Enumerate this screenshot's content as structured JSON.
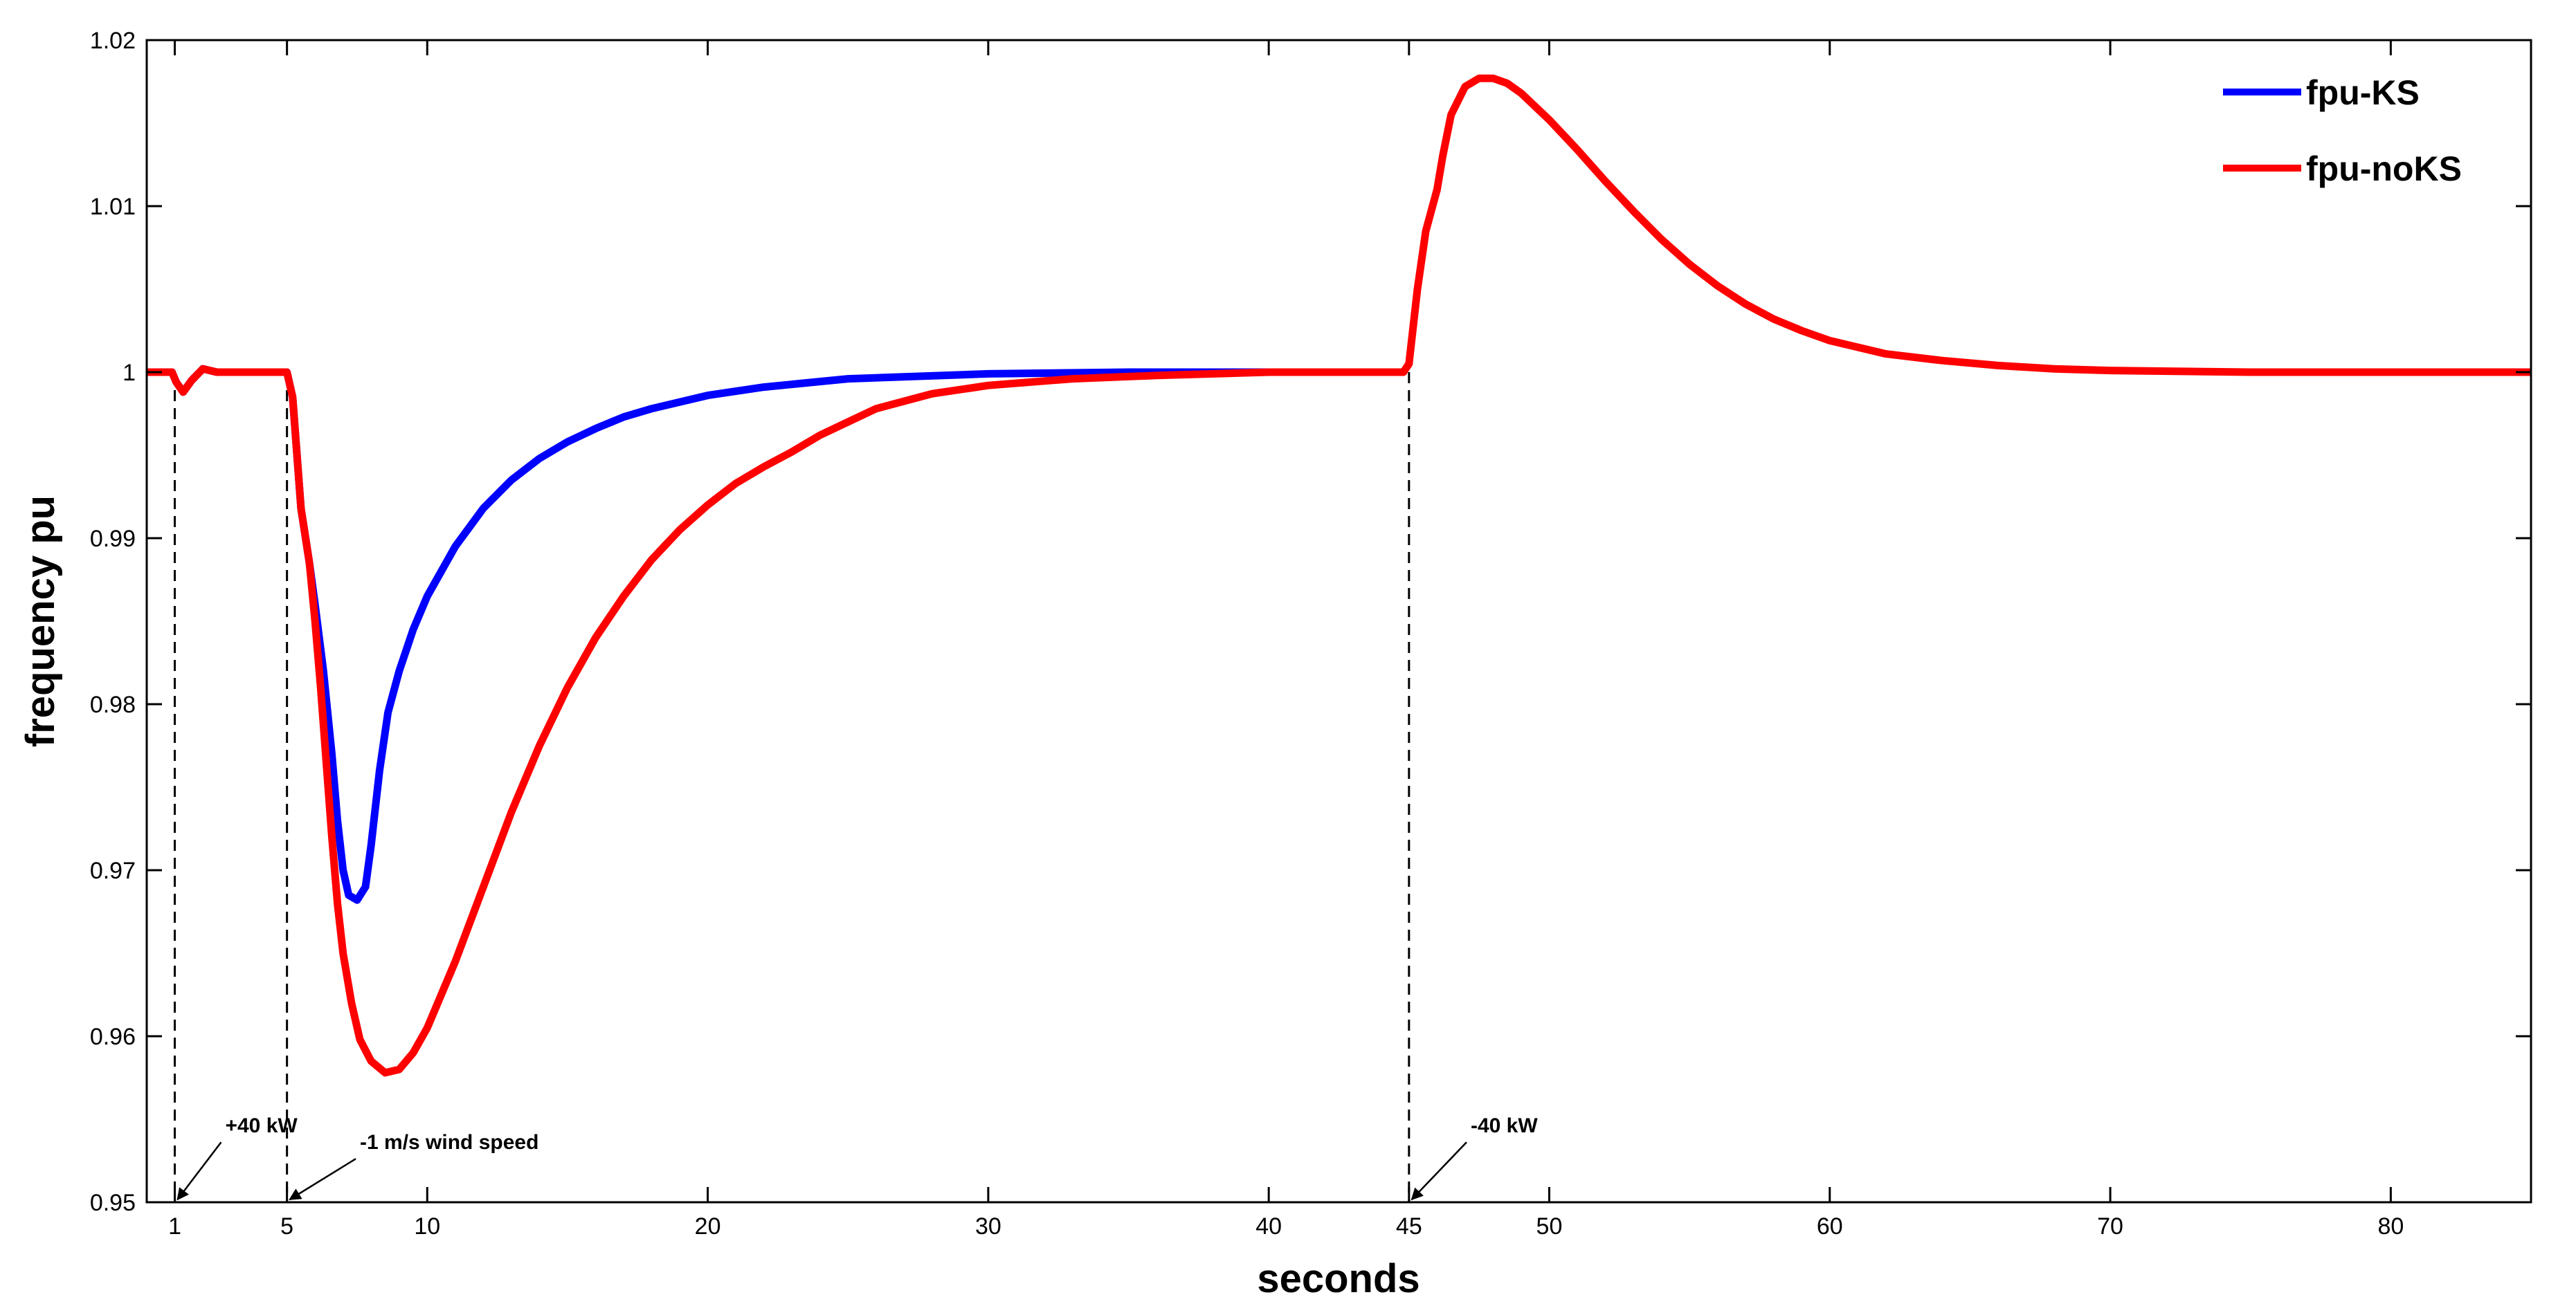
{
  "chart_data": {
    "type": "line",
    "title": "",
    "xlabel": "seconds",
    "ylabel": "frequency pu",
    "xlim": [
      0,
      85
    ],
    "ylim": [
      0.95,
      1.02
    ],
    "xticks": [
      1,
      5,
      10,
      20,
      30,
      40,
      45,
      50,
      60,
      70,
      80
    ],
    "yticks": [
      0.95,
      0.96,
      0.97,
      0.98,
      0.99,
      1,
      1.01,
      1.02
    ],
    "grid": false,
    "legend": "top-right",
    "series": [
      {
        "name": "fpu-KS",
        "color": "#0000ff",
        "points": [
          [
            0,
            1
          ],
          [
            0.9,
            1
          ],
          [
            1.05,
            0.9994
          ],
          [
            1.3,
            0.9988
          ],
          [
            1.6,
            0.9995
          ],
          [
            2,
            1.0002
          ],
          [
            2.5,
            1
          ],
          [
            4,
            1
          ],
          [
            5,
            1
          ],
          [
            5.2,
            0.9985
          ],
          [
            5.5,
            0.9918
          ],
          [
            5.8,
            0.9885
          ],
          [
            6,
            0.986
          ],
          [
            6.3,
            0.982
          ],
          [
            6.6,
            0.977
          ],
          [
            6.8,
            0.973
          ],
          [
            7,
            0.97
          ],
          [
            7.2,
            0.9685
          ],
          [
            7.5,
            0.9682
          ],
          [
            7.8,
            0.969
          ],
          [
            8,
            0.9715
          ],
          [
            8.3,
            0.976
          ],
          [
            8.6,
            0.9795
          ],
          [
            9,
            0.982
          ],
          [
            9.5,
            0.9845
          ],
          [
            10,
            0.9865
          ],
          [
            11,
            0.9895
          ],
          [
            12,
            0.9918
          ],
          [
            13,
            0.9935
          ],
          [
            14,
            0.9948
          ],
          [
            15,
            0.9958
          ],
          [
            16,
            0.9966
          ],
          [
            17,
            0.9973
          ],
          [
            18,
            0.9978
          ],
          [
            20,
            0.9986
          ],
          [
            22,
            0.9991
          ],
          [
            25,
            0.9996
          ],
          [
            30,
            0.9999
          ],
          [
            35,
            1
          ],
          [
            44.7,
            1
          ]
        ]
      },
      {
        "name": "fpu-noKS",
        "color": "#ff0000",
        "points": [
          [
            0,
            1
          ],
          [
            0.9,
            1
          ],
          [
            1.05,
            0.9994
          ],
          [
            1.3,
            0.9988
          ],
          [
            1.6,
            0.9995
          ],
          [
            2,
            1.0002
          ],
          [
            2.5,
            1
          ],
          [
            4,
            1
          ],
          [
            5,
            1
          ],
          [
            5.2,
            0.9985
          ],
          [
            5.5,
            0.9918
          ],
          [
            5.8,
            0.9885
          ],
          [
            6,
            0.985
          ],
          [
            6.2,
            0.981
          ],
          [
            6.4,
            0.9765
          ],
          [
            6.6,
            0.972
          ],
          [
            6.8,
            0.968
          ],
          [
            7,
            0.965
          ],
          [
            7.3,
            0.962
          ],
          [
            7.6,
            0.9598
          ],
          [
            8,
            0.9585
          ],
          [
            8.5,
            0.9578
          ],
          [
            9,
            0.958
          ],
          [
            9.5,
            0.959
          ],
          [
            10,
            0.9605
          ],
          [
            11,
            0.9645
          ],
          [
            12,
            0.969
          ],
          [
            13,
            0.9735
          ],
          [
            14,
            0.9775
          ],
          [
            15,
            0.981
          ],
          [
            16,
            0.984
          ],
          [
            17,
            0.9865
          ],
          [
            18,
            0.9887
          ],
          [
            19,
            0.9905
          ],
          [
            20,
            0.992
          ],
          [
            21,
            0.9933
          ],
          [
            22,
            0.9943
          ],
          [
            23,
            0.9952
          ],
          [
            24,
            0.9962
          ],
          [
            25,
            0.997
          ],
          [
            26,
            0.9978
          ],
          [
            28,
            0.9987
          ],
          [
            30,
            0.9992
          ],
          [
            33,
            0.9996
          ],
          [
            36,
            0.9998
          ],
          [
            40,
            1
          ],
          [
            44.8,
            1
          ],
          [
            45,
            1.0005
          ],
          [
            45.3,
            1.005
          ],
          [
            45.6,
            1.0085
          ],
          [
            46,
            1.011
          ],
          [
            46.2,
            1.013
          ],
          [
            46.5,
            1.0155
          ],
          [
            47,
            1.0172
          ],
          [
            47.5,
            1.0177
          ],
          [
            48,
            1.0177
          ],
          [
            48.5,
            1.0174
          ],
          [
            49,
            1.0168
          ],
          [
            50,
            1.0152
          ],
          [
            51,
            1.0134
          ],
          [
            52,
            1.0115
          ],
          [
            53,
            1.0097
          ],
          [
            54,
            1.008
          ],
          [
            55,
            1.0065
          ],
          [
            56,
            1.0052
          ],
          [
            57,
            1.0041
          ],
          [
            58,
            1.0032
          ],
          [
            59,
            1.0025
          ],
          [
            60,
            1.0019
          ],
          [
            62,
            1.0011
          ],
          [
            64,
            1.0007
          ],
          [
            66,
            1.0004
          ],
          [
            68,
            1.0002
          ],
          [
            70,
            1.0001
          ],
          [
            75,
            1
          ],
          [
            85,
            1
          ]
        ]
      }
    ],
    "event_lines": [
      1,
      5,
      45
    ],
    "annotations": [
      {
        "text": "+40 kW",
        "x": 1,
        "label_x": 2.8,
        "label_y": 0.9542
      },
      {
        "text": "-1 m/s wind speed",
        "x": 5,
        "label_x": 7.6,
        "label_y": 0.9532
      },
      {
        "text": "-40 kW",
        "x": 45,
        "label_x": 47.2,
        "label_y": 0.9542
      }
    ]
  }
}
